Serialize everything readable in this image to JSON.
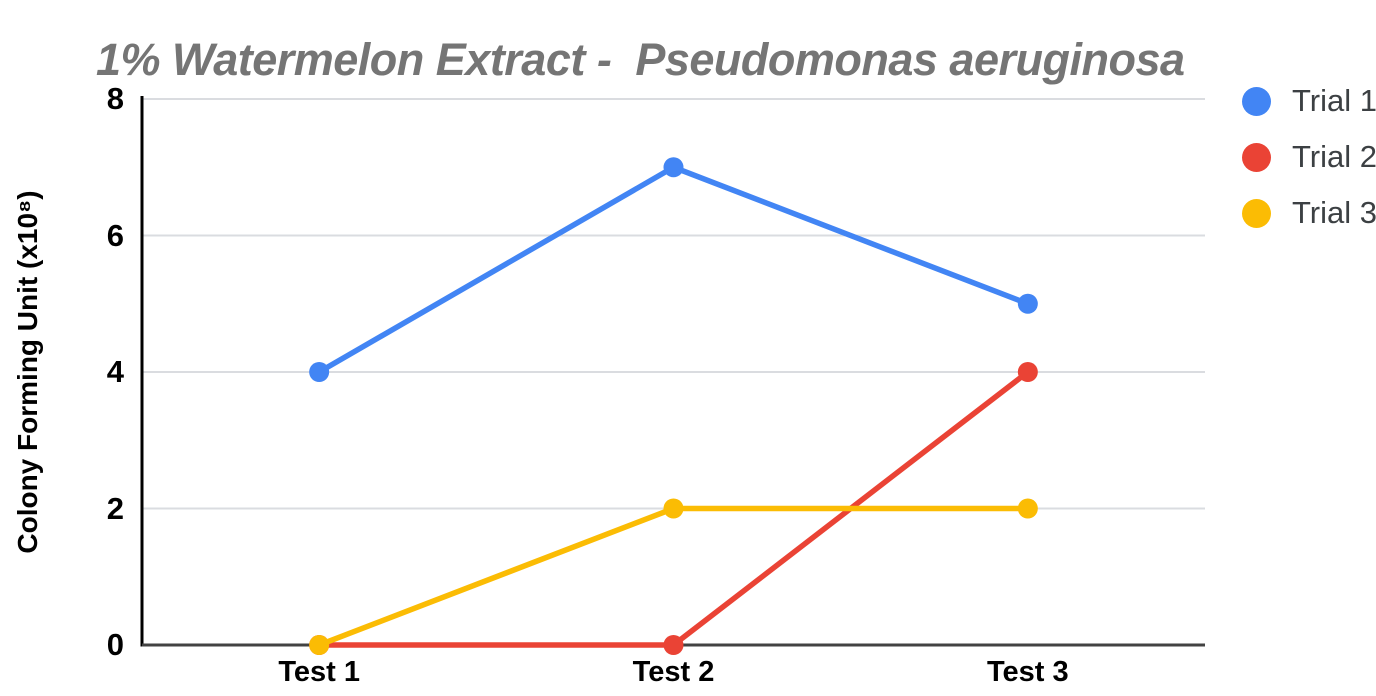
{
  "chart_data": {
    "type": "line",
    "title": "1% Watermelon Extract -  Pseudomonas aeruginosa",
    "title_color": "#757575",
    "categories": [
      "Test 1",
      "Test 2",
      "Test 3"
    ],
    "series": [
      {
        "name": "Trial 1",
        "color": "#4285F4",
        "values": [
          4,
          7,
          5
        ]
      },
      {
        "name": "Trial 2",
        "color": "#EA4335",
        "values": [
          0,
          0,
          4
        ]
      },
      {
        "name": "Trial 3",
        "color": "#FBBC04",
        "values": [
          0,
          2,
          2
        ]
      }
    ],
    "xlabel": "",
    "ylabel": "Colony Forming Unit (x10⁸)",
    "ylim": [
      0,
      8
    ],
    "yticks": [
      0,
      2,
      4,
      6,
      8
    ],
    "grid": true,
    "legend_position": "right",
    "gridline_color": "#dadce0",
    "x_axis_color": "#424242",
    "y_axis_color": "#000000",
    "tick_label_color": "#000000"
  }
}
